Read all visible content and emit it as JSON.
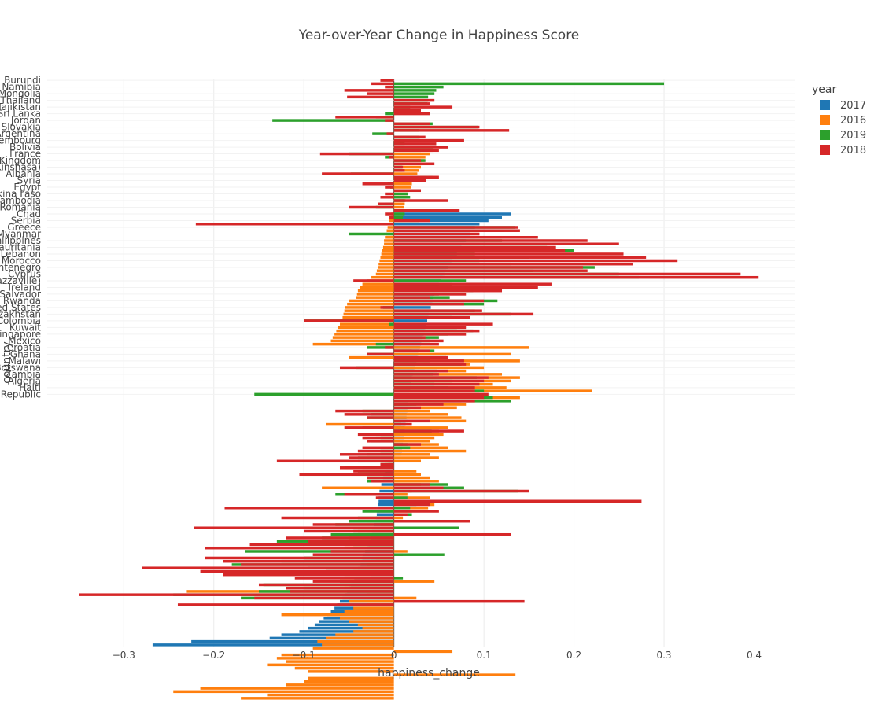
{
  "chart_data": {
    "type": "bar",
    "orientation": "horizontal",
    "barmode": "overlay",
    "title": "Year-over-Year Change in Happiness Score",
    "xlabel": "happiness_change",
    "ylabel": "country",
    "xlim": [
      -0.385,
      0.445
    ],
    "x_ticks": [
      -0.3,
      -0.2,
      -0.1,
      0,
      0.1,
      0.2,
      0.3,
      0.4
    ],
    "x_tick_labels": [
      "−0.3",
      "−0.2",
      "−0.1",
      "0",
      "0.1",
      "0.2",
      "0.3",
      "0.4"
    ],
    "grid": true,
    "legend": {
      "title": "year",
      "position": "top-right",
      "entries": [
        {
          "name": "2017",
          "color": "#1f77b4"
        },
        {
          "name": "2016",
          "color": "#ff7f0e"
        },
        {
          "name": "2019",
          "color": "#2ca02c"
        },
        {
          "name": "2018",
          "color": "#d62728"
        }
      ]
    },
    "category_labels": [
      "Burundi",
      "Namibia",
      "Mongolia",
      "Thailand",
      "Tajikistan",
      "Sri Lanka",
      "Jordan",
      "Slovakia",
      "Argentina",
      "Luxembourg",
      "Bolivia",
      "France",
      "United Kingdom",
      "Congo (Kinshasa)",
      "Albania",
      "Syria",
      "Egypt",
      "Burkina Faso",
      "Cambodia",
      "Romania",
      "Chad",
      "Serbia",
      "Greece",
      "Myanmar",
      "Philippines",
      "Mauritania",
      "Lebanon",
      "Morocco",
      "Montenegro",
      "Cyprus",
      "Congo (Brazzaville)",
      "Ireland",
      "El Salvador",
      "Rwanda",
      "United States",
      "Kazakhstan",
      "Colombia",
      "Kuwait",
      "Singapore",
      "Mexico",
      "Croatia",
      "Ghana",
      "Malawi",
      "Botswana",
      "Zambia",
      "Algeria",
      "Haiti",
      "Central African Republic"
    ],
    "label_rows": [
      0,
      2,
      4,
      6,
      8,
      10,
      12,
      14,
      16,
      18,
      20,
      22,
      24,
      26,
      28,
      30,
      32,
      34,
      36,
      38,
      40,
      42,
      44,
      46,
      48,
      50,
      52,
      54,
      56,
      58,
      60,
      62,
      64,
      66,
      68,
      70,
      72,
      74,
      76,
      78,
      80,
      82,
      84,
      86,
      88,
      90,
      92,
      94
    ],
    "series": [
      {
        "name": "2017",
        "color": "#1f77b4",
        "values": [
          0,
          0,
          0,
          0,
          0,
          0,
          0,
          0,
          0,
          0,
          0,
          0,
          0,
          0,
          0,
          0,
          0,
          0,
          0,
          0,
          0,
          0,
          0,
          0,
          0,
          0,
          0,
          0,
          0,
          0,
          0,
          0,
          0,
          0,
          0,
          0,
          0,
          0,
          0,
          0,
          0.13,
          0.12,
          0.105,
          0.095,
          0.09,
          0.087,
          0.085,
          0.083,
          0.08,
          0.078,
          0.075,
          0.072,
          0.07,
          0.068,
          0.065,
          0.063,
          0.06,
          0.058,
          0.056,
          0.054,
          0.052,
          0.05,
          0.048,
          0.046,
          0.045,
          0.044,
          0.043,
          0.042,
          0.041,
          0.04,
          0.039,
          0.038,
          0.037,
          0.036,
          0.035,
          0.034,
          0.033,
          0.032,
          0.031,
          0.03,
          0.029,
          0.028,
          0.027,
          0.026,
          0.025,
          0.024,
          0.023,
          0.022,
          0.021,
          0.02,
          0.019,
          0.019,
          0.018,
          0.018,
          0.017,
          0.017,
          0.016,
          0.016,
          0.015,
          0.015,
          0.014,
          0.014,
          0.013,
          0.013,
          0.012,
          0.012,
          0.011,
          0.011,
          0.01,
          0.01,
          0.009,
          0.009,
          0.008,
          -0.002,
          -0.005,
          -0.007,
          -0.009,
          -0.01,
          -0.011,
          -0.012,
          -0.013,
          -0.014,
          -0.015,
          -0.016,
          -0.016,
          -0.017,
          -0.017,
          -0.018,
          -0.018,
          -0.019,
          -0.019,
          -0.02,
          -0.021,
          -0.022,
          -0.023,
          -0.024,
          -0.025,
          -0.026,
          -0.027,
          -0.028,
          -0.03,
          -0.032,
          -0.034,
          -0.035,
          -0.036,
          -0.037,
          -0.038,
          -0.04,
          -0.042,
          -0.044,
          -0.046,
          -0.048,
          -0.05,
          -0.052,
          -0.054,
          -0.057,
          -0.06,
          -0.063,
          -0.066,
          -0.07,
          -0.074,
          -0.078,
          -0.083,
          -0.088,
          -0.095,
          -0.105,
          -0.125,
          -0.138,
          -0.225,
          -0.268
        ]
      },
      {
        "name": "2016",
        "color": "#ff7f0e",
        "values": [
          0,
          0,
          0,
          0,
          0,
          0,
          0,
          0,
          0,
          0,
          0,
          0,
          0,
          0,
          0,
          0,
          0,
          0,
          0,
          0,
          0,
          0.044,
          0.04,
          0.035,
          0.034,
          0.032,
          0.03,
          0.028,
          0.026,
          0.024,
          0.022,
          0.02,
          0.019,
          0.017,
          0.015,
          0.014,
          0.013,
          0.012,
          0.011,
          0.01,
          -0.003,
          -0.004,
          -0.005,
          -0.006,
          -0.007,
          -0.008,
          -0.009,
          -0.01,
          -0.011,
          -0.011,
          -0.012,
          -0.013,
          -0.014,
          -0.015,
          -0.016,
          -0.017,
          -0.018,
          -0.019,
          -0.02,
          -0.025,
          -0.03,
          -0.035,
          -0.038,
          -0.04,
          -0.041,
          -0.042,
          -0.05,
          -0.052,
          -0.054,
          -0.055,
          -0.056,
          -0.057,
          -0.058,
          -0.06,
          -0.062,
          -0.064,
          -0.066,
          -0.068,
          -0.07,
          -0.09,
          0.15,
          0.02,
          0.13,
          -0.05,
          0.14,
          0.085,
          0.1,
          0.08,
          0.12,
          0.14,
          0.13,
          0.11,
          0.125,
          0.22,
          0.095,
          0.14,
          0.075,
          0.08,
          0.07,
          0.04,
          0.06,
          0.075,
          0.08,
          -0.075,
          0.06,
          0.05,
          0.055,
          0.045,
          0.04,
          0.05,
          0.06,
          0.08,
          0.04,
          0.05,
          0.03,
          -0.01,
          -0.055,
          0.025,
          0.03,
          0.04,
          0.05,
          0.03,
          -0.08,
          0.02,
          0.015,
          0.04,
          0.03,
          0.045,
          0.038,
          0.02,
          0.01,
          0.01,
          -0.03,
          -0.015,
          -0.015,
          -0.04,
          -0.03,
          -0.05,
          -0.04,
          -0.055,
          -0.045,
          0.015,
          0.01,
          -0.02,
          -0.025,
          -0.03,
          -0.04,
          -0.045,
          -0.055,
          -0.06,
          0.045,
          -0.06,
          -0.055,
          -0.23,
          -0.03,
          0.025,
          -0.05,
          -0.03,
          -0.045,
          -0.055,
          -0.125,
          -0.06,
          -0.05,
          -0.04,
          -0.035,
          -0.045,
          -0.065,
          -0.075,
          -0.085,
          -0.08,
          -0.09,
          0.065,
          -0.125,
          -0.13,
          -0.12,
          -0.14,
          -0.11,
          -0.095,
          0.135,
          -0.095,
          -0.1,
          -0.12,
          -0.215,
          -0.245,
          -0.14,
          -0.17
        ]
      },
      {
        "name": "2019",
        "color": "#2ca02c",
        "values": [
          0,
          0.3,
          0.055,
          0.047,
          0.045,
          0.038,
          0.038,
          0.037,
          0.018,
          0.015,
          -0.01,
          -0.02,
          -0.135,
          0.043,
          0.093,
          0.028,
          -0.024,
          0.028,
          0.029,
          0.012,
          0.044,
          0.03,
          -0.05,
          -0.01,
          0.035,
          0.012,
          0.009,
          0.009,
          -0.048,
          0.043,
          0.026,
          -0.007,
          -0.004,
          0.03,
          0.016,
          0.018,
          0.012,
          -0.01,
          -0.02,
          0.041,
          0.012,
          0.01,
          0.028,
          -0.18,
          0.135,
          0.122,
          -0.05,
          0.09,
          0.12,
          0.15,
          0.17,
          0.2,
          0.09,
          0.15,
          0.095,
          0.13,
          0.223,
          0.155,
          0.25,
          0.272,
          0.08,
          0.065,
          0.155,
          0.088,
          0.05,
          0.062,
          0.115,
          0.1,
          -0.012,
          0.09,
          0.13,
          0.064,
          -0.1,
          -0.005,
          0.07,
          0.088,
          0.06,
          0.05,
          0.04,
          -0.02,
          -0.03,
          0.045,
          -0.03,
          0.058,
          0.04,
          0.075,
          -0.042,
          0.048,
          0.044,
          0.092,
          0.065,
          0.045,
          0.06,
          0.1,
          -0.155,
          0.11,
          0.13,
          0.025,
          0.018,
          -0.035,
          -0.025,
          -0.03,
          0.015,
          0.008,
          -0.035,
          0.042,
          -0.02,
          -0.015,
          -0.025,
          0.015,
          0.018,
          -0.015,
          -0.03,
          -0.04,
          -0.04,
          -0.015,
          -0.035,
          -0.04,
          -0.1,
          -0.03,
          -0.03,
          0.06,
          0.078,
          0.138,
          -0.065,
          0.015,
          0.145,
          0.025,
          0.018,
          -0.035,
          0.02,
          -0.04,
          -0.05,
          -0.065,
          0.072,
          -0.045,
          -0.07,
          -0.08,
          -0.13,
          -0.045,
          -0.03,
          -0.165,
          0.056,
          -0.1,
          -0.125,
          -0.18,
          -0.095,
          -0.075,
          -0.025,
          0.01,
          -0.06,
          -0.145,
          -0.1,
          -0.15,
          -0.245,
          -0.17
        ]
      },
      {
        "name": "2018",
        "color": "#d62728",
        "values": [
          -0.015,
          -0.025,
          -0.01,
          -0.055,
          -0.03,
          -0.052,
          0.045,
          0.04,
          0.065,
          0.03,
          0.04,
          -0.065,
          -0.01,
          0.04,
          0.095,
          0.128,
          -0.008,
          0.035,
          0.078,
          0.047,
          0.06,
          0.05,
          -0.082,
          -0.005,
          0.03,
          0.045,
          0.01,
          0.012,
          -0.08,
          0.05,
          0.036,
          -0.035,
          -0.01,
          0.03,
          -0.01,
          -0.015,
          0.06,
          -0.018,
          -0.05,
          0.073,
          -0.01,
          -0.005,
          0.04,
          -0.22,
          0.138,
          0.14,
          0.095,
          0.16,
          0.215,
          0.25,
          0.18,
          0.19,
          0.255,
          0.28,
          0.315,
          0.265,
          0.21,
          0.215,
          0.385,
          0.405,
          -0.045,
          0.175,
          0.16,
          0.12,
          0.08,
          0.04,
          0.1,
          0.078,
          -0.015,
          0.098,
          0.155,
          0.085,
          -0.1,
          0.11,
          0.08,
          0.095,
          0.08,
          0.035,
          0.055,
          0.05,
          -0.01,
          0.04,
          -0.03,
          0.06,
          0.078,
          0.08,
          -0.06,
          0.06,
          0.05,
          0.105,
          0.1,
          0.095,
          0.09,
          0.09,
          0.105,
          0.1,
          0.09,
          0.055,
          0.03,
          -0.065,
          -0.055,
          -0.03,
          0.04,
          0.02,
          -0.055,
          0.078,
          -0.04,
          -0.035,
          -0.03,
          0.03,
          -0.035,
          -0.04,
          -0.06,
          -0.05,
          -0.13,
          -0.015,
          -0.06,
          -0.045,
          -0.105,
          -0.03,
          -0.025,
          0.04,
          0.055,
          0.15,
          -0.055,
          -0.02,
          0.275,
          0.04,
          -0.188,
          0.05,
          0.015,
          -0.125,
          0.085,
          -0.09,
          -0.222,
          -0.1,
          0.13,
          -0.12,
          -0.095,
          -0.16,
          -0.21,
          -0.07,
          -0.09,
          -0.21,
          -0.19,
          -0.17,
          -0.28,
          -0.215,
          -0.19,
          -0.11,
          -0.09,
          -0.15,
          -0.12,
          -0.115,
          -0.35,
          -0.155,
          0.145,
          -0.24
        ]
      }
    ]
  }
}
